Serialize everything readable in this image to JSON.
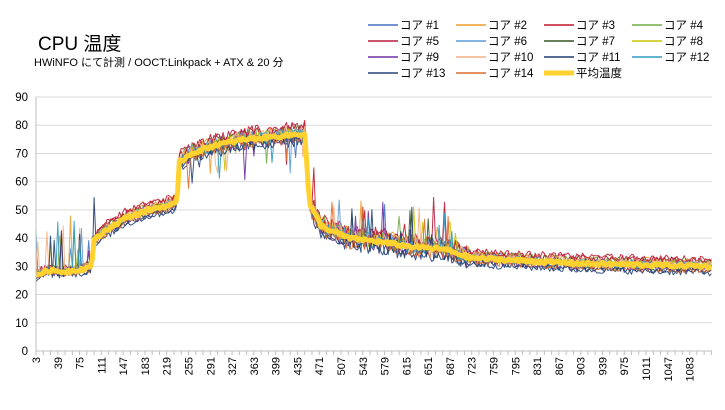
{
  "chart_data": {
    "type": "line",
    "title": "CPU 温度",
    "subtitle": "HWiNFO にて計測  / OOCT:Linkpack + ATX & 20 分",
    "xlabel": "",
    "ylabel": "",
    "ylim": [
      0,
      90
    ],
    "yticks": [
      0,
      10,
      20,
      30,
      40,
      50,
      60,
      70,
      80,
      90
    ],
    "xlim": [
      3,
      1120
    ],
    "xticks": [
      3,
      39,
      75,
      111,
      147,
      183,
      219,
      255,
      291,
      327,
      363,
      399,
      435,
      471,
      507,
      543,
      579,
      615,
      651,
      687,
      723,
      759,
      795,
      831,
      867,
      903,
      939,
      975,
      1011,
      1047,
      1083
    ],
    "grid": true,
    "legend_position": "top-right",
    "profile": [
      [
        3,
        27
      ],
      [
        25,
        28.5
      ],
      [
        50,
        28
      ],
      [
        80,
        29
      ],
      [
        95,
        30
      ],
      [
        98,
        39
      ],
      [
        120,
        43
      ],
      [
        150,
        47
      ],
      [
        190,
        50
      ],
      [
        230,
        52
      ],
      [
        236,
        52
      ],
      [
        240,
        67
      ],
      [
        260,
        70
      ],
      [
        300,
        73
      ],
      [
        350,
        75
      ],
      [
        400,
        76
      ],
      [
        447,
        77
      ],
      [
        455,
        52
      ],
      [
        475,
        44
      ],
      [
        520,
        40
      ],
      [
        560,
        39
      ],
      [
        620,
        37
      ],
      [
        680,
        36
      ],
      [
        720,
        33
      ],
      [
        800,
        32
      ],
      [
        900,
        31
      ],
      [
        1000,
        30.5
      ],
      [
        1120,
        30
      ]
    ],
    "series": [
      {
        "name": "コア #1",
        "color": "#4472c4",
        "offset": 1.0,
        "width": 1
      },
      {
        "name": "コア #2",
        "color": "#ed9b28",
        "offset": 1.6,
        "width": 1
      },
      {
        "name": "コア #3",
        "color": "#c0162c",
        "offset": 2.5,
        "width": 1
      },
      {
        "name": "コア #4",
        "color": "#70ad47",
        "offset": 1.4,
        "width": 1
      },
      {
        "name": "コア #5",
        "color": "#b71c3c",
        "offset": 1.8,
        "width": 1
      },
      {
        "name": "コア #6",
        "color": "#5b9bd5",
        "offset": 0.6,
        "width": 1
      },
      {
        "name": "コア #7",
        "color": "#375623",
        "offset": -0.8,
        "width": 1
      },
      {
        "name": "コア #8",
        "color": "#c9c400",
        "offset": 0.3,
        "width": 1
      },
      {
        "name": "コア #9",
        "color": "#7030a0",
        "offset": -1.0,
        "width": 1
      },
      {
        "name": "コア #10",
        "color": "#f4b183",
        "offset": 0.9,
        "width": 1
      },
      {
        "name": "コア #11",
        "color": "#1f3b6f",
        "offset": -1.6,
        "width": 1
      },
      {
        "name": "コア #12",
        "color": "#2e9bc0",
        "offset": -0.2,
        "width": 1
      },
      {
        "name": "コア #13",
        "color": "#264478",
        "offset": -2.2,
        "width": 1
      },
      {
        "name": "コア #14",
        "color": "#e06c2f",
        "offset": -1.3,
        "width": 1
      },
      {
        "name": "平均温度",
        "color": "#ffd230",
        "offset": 0,
        "width": 5
      }
    ]
  }
}
